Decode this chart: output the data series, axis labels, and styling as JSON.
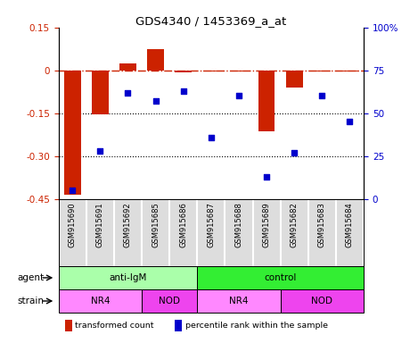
{
  "title": "GDS4340 / 1453369_a_at",
  "samples": [
    "GSM915690",
    "GSM915691",
    "GSM915692",
    "GSM915685",
    "GSM915686",
    "GSM915687",
    "GSM915688",
    "GSM915689",
    "GSM915682",
    "GSM915683",
    "GSM915684"
  ],
  "bar_values": [
    -0.435,
    -0.155,
    0.025,
    0.075,
    -0.008,
    -0.004,
    -0.004,
    -0.215,
    -0.06,
    -0.004,
    -0.004
  ],
  "scatter_values": [
    5,
    28,
    62,
    57,
    63,
    36,
    60,
    13,
    27,
    60,
    45
  ],
  "ylim_left": [
    -0.45,
    0.15
  ],
  "ylim_right": [
    0,
    100
  ],
  "yticks_left": [
    0.15,
    0.0,
    -0.15,
    -0.3,
    -0.45
  ],
  "yticks_left_labels": [
    "0.15",
    "0",
    "-0.15",
    "-0.30",
    "-0.45"
  ],
  "yticks_right": [
    100,
    75,
    50,
    25,
    0
  ],
  "yticks_right_labels": [
    "100%",
    "75",
    "50",
    "25",
    "0"
  ],
  "bar_color": "#cc2200",
  "scatter_color": "#0000cc",
  "dashed_line_color": "#cc2200",
  "agent_groups": [
    {
      "label": "anti-IgM",
      "start": 0,
      "end": 5,
      "color": "#aaffaa"
    },
    {
      "label": "control",
      "start": 5,
      "end": 11,
      "color": "#33ee33"
    }
  ],
  "strain_groups": [
    {
      "label": "NR4",
      "start": 0,
      "end": 3,
      "color": "#ff88ff"
    },
    {
      "label": "NOD",
      "start": 3,
      "end": 5,
      "color": "#ee44ee"
    },
    {
      "label": "NR4",
      "start": 5,
      "end": 8,
      "color": "#ff88ff"
    },
    {
      "label": "NOD",
      "start": 8,
      "end": 11,
      "color": "#ee44ee"
    }
  ],
  "legend_items": [
    {
      "label": "transformed count",
      "color": "#cc2200"
    },
    {
      "label": "percentile rank within the sample",
      "color": "#0000cc"
    }
  ]
}
